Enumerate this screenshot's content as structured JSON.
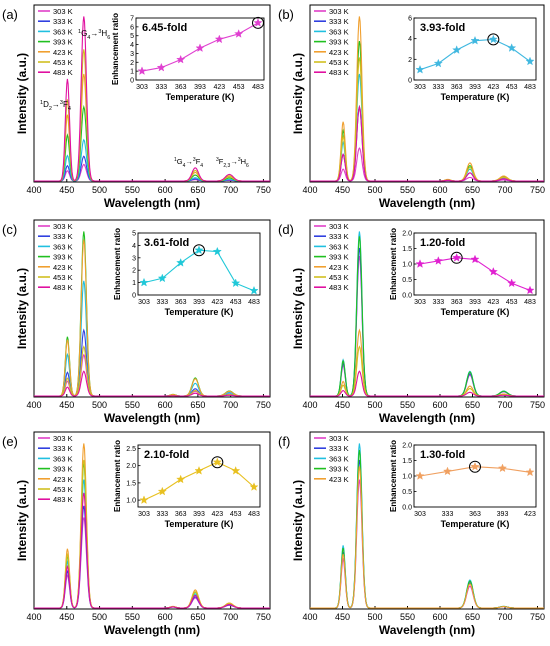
{
  "figure": {
    "title": "",
    "legend_colors": {
      "303 K": "#e040c8",
      "333 K": "#3040e0",
      "363 K": "#20c0e0",
      "393 K": "#20c020",
      "423 K": "#f0a030",
      "453 K": "#d0c020",
      "483 K": "#e010a0"
    }
  },
  "chart_data": [
    {
      "panel": "(a)",
      "type": "line",
      "xlabel": "Wavelength (nm)",
      "ylabel": "Intensity (a.u.)",
      "xticks": [
        "400",
        "450",
        "500",
        "550",
        "600",
        "650",
        "700",
        "750"
      ],
      "xlim": [
        400,
        760
      ],
      "legend": [
        "303 K",
        "333 K",
        "363 K",
        "393 K",
        "423 K",
        "453 K",
        "483 K"
      ],
      "annotations": {
        "a1_main": "1",
        "a1_sub": "D",
        "a1_sub2": "2",
        "a1_arrow": "→",
        "a1_sup": "3",
        "a1_end": "F",
        "a1_sub3": "4",
        "a2_sup": "1",
        "a2_main": "G",
        "a2_sub": "4",
        "a2_arrow": "→",
        "a2_sup2": "3",
        "a2_end": "H",
        "a2_sub2": "6",
        "a3": "1G4→3F4",
        "a4": "3F2,3→3H6"
      },
      "peak_scale": [
        0.1,
        0.15,
        0.25,
        0.45,
        0.65,
        0.8,
        1.0
      ],
      "inset": {
        "type": "line",
        "fold_label": "6.45-fold",
        "xlabel": "Temperature (K)",
        "ylabel": "Enhancement ratio",
        "xticks": [
          "303",
          "333",
          "363",
          "393",
          "423",
          "453",
          "483"
        ],
        "yticks": [
          "0",
          "1",
          "2",
          "3",
          "4",
          "5",
          "6",
          "7"
        ],
        "ylim": [
          0,
          7
        ],
        "values": [
          1.0,
          1.4,
          2.3,
          3.6,
          4.6,
          5.2,
          6.45
        ],
        "color": "#e040d0",
        "highlight_index": 6
      }
    },
    {
      "panel": "(b)",
      "type": "line",
      "xlabel": "Wavelength (nm)",
      "ylabel": "Intensity (a.u.)",
      "xticks": [
        "400",
        "450",
        "500",
        "550",
        "600",
        "650",
        "700",
        "750"
      ],
      "xlim": [
        400,
        760
      ],
      "legend": [
        "303 K",
        "333 K",
        "363 K",
        "393 K",
        "423 K",
        "453 K",
        "483 K"
      ],
      "peak_scale": [
        0.2,
        0.45,
        0.65,
        0.85,
        1.0,
        0.75,
        0.45
      ],
      "inset": {
        "type": "line",
        "fold_label": "3.93-fold",
        "xlabel": "Temperature (K)",
        "ylabel": "",
        "xticks": [
          "303",
          "333",
          "363",
          "393",
          "423",
          "453",
          "483"
        ],
        "yticks": [
          "0",
          "2",
          "4",
          "6"
        ],
        "ylim": [
          0,
          6
        ],
        "values": [
          1.0,
          1.6,
          2.9,
          3.8,
          3.93,
          3.1,
          1.8
        ],
        "color": "#40b8e0",
        "highlight_index": 4
      }
    },
    {
      "panel": "(c)",
      "type": "line",
      "xlabel": "Wavelength (nm)",
      "ylabel": "Intensity (a.u.)",
      "xticks": [
        "400",
        "450",
        "500",
        "550",
        "600",
        "650",
        "700",
        "750"
      ],
      "xlim": [
        400,
        760
      ],
      "legend": [
        "303 K",
        "333 K",
        "363 K",
        "393 K",
        "423 K",
        "453 K",
        "483 K"
      ],
      "peak_scale": [
        0.25,
        0.4,
        0.7,
        1.0,
        0.95,
        0.3,
        0.15
      ],
      "inset": {
        "type": "line",
        "fold_label": "3.61-fold",
        "xlabel": "Temperature (K)",
        "ylabel": "Enhancement ratio",
        "xticks": [
          "303",
          "333",
          "363",
          "393",
          "423",
          "453",
          "483"
        ],
        "yticks": [
          "0",
          "1",
          "2",
          "3",
          "4",
          "5"
        ],
        "ylim": [
          0,
          5
        ],
        "values": [
          1.0,
          1.35,
          2.6,
          3.61,
          3.5,
          0.95,
          0.35
        ],
        "color": "#20c8d8",
        "highlight_index": 3
      }
    },
    {
      "panel": "(d)",
      "type": "line",
      "xlabel": "Wavelength (nm)",
      "ylabel": "Intensity (a.u.)",
      "xticks": [
        "400",
        "450",
        "500",
        "550",
        "600",
        "650",
        "700",
        "750"
      ],
      "xlim": [
        400,
        760
      ],
      "legend": [
        "303 K",
        "333 K",
        "363 K",
        "393 K",
        "423 K",
        "453 K",
        "483 K"
      ],
      "peak_scale": [
        0.85,
        0.9,
        1.0,
        0.97,
        0.4,
        0.3,
        0.15
      ],
      "inset": {
        "type": "line",
        "fold_label": "1.20-fold",
        "xlabel": "Temperature (K)",
        "ylabel": "Enhancement ratio",
        "xticks": [
          "303",
          "333",
          "363",
          "393",
          "423",
          "453",
          "483"
        ],
        "yticks": [
          "0.0",
          "0.5",
          "1.0",
          "1.5",
          "2.0"
        ],
        "ylim": [
          0,
          2.0
        ],
        "values": [
          1.0,
          1.1,
          1.2,
          1.15,
          0.75,
          0.38,
          0.15
        ],
        "color": "#e020d0",
        "highlight_index": 2
      }
    },
    {
      "panel": "(e)",
      "type": "line",
      "xlabel": "Wavelength (nm)",
      "ylabel": "Intensity (a.u.)",
      "xticks": [
        "400",
        "450",
        "500",
        "550",
        "600",
        "650",
        "700",
        "750"
      ],
      "xlim": [
        400,
        760
      ],
      "legend": [
        "303 K",
        "333 K",
        "363 K",
        "393 K",
        "423 K",
        "453 K",
        "483 K"
      ],
      "peak_scale": [
        0.55,
        0.62,
        0.78,
        0.88,
        1.0,
        0.9,
        0.7
      ],
      "inset": {
        "type": "line",
        "fold_label": "2.10-fold",
        "xlabel": "Temperature (K)",
        "ylabel": "Enhancement ratio",
        "xticks": [
          "303",
          "333",
          "363",
          "393",
          "423",
          "453",
          "483"
        ],
        "yticks": [
          "1.0",
          "1.5",
          "2.0",
          "2.5"
        ],
        "ylim": [
          0.8,
          2.6
        ],
        "values": [
          1.0,
          1.25,
          1.6,
          1.85,
          2.1,
          1.85,
          1.38
        ],
        "color": "#e8c020",
        "highlight_index": 4
      }
    },
    {
      "panel": "(f)",
      "type": "line",
      "xlabel": "Wavelength (nm)",
      "ylabel": "Intensity (a.u.)",
      "xticks": [
        "400",
        "450",
        "500",
        "550",
        "600",
        "650",
        "700",
        "750"
      ],
      "xlim": [
        400,
        760
      ],
      "legend": [
        "303 K",
        "333 K",
        "363 K",
        "393 K",
        "423 K"
      ],
      "peak_scale": [
        0.78,
        0.9,
        1.0,
        0.96,
        0.86
      ],
      "inset": {
        "type": "line",
        "fold_label": "1.30-fold",
        "xlabel": "Temperature (K)",
        "ylabel": "Enhancement ratio",
        "xticks": [
          "303",
          "333",
          "363",
          "393",
          "423"
        ],
        "yticks": [
          "0.0",
          "0.5",
          "1.0",
          "1.5",
          "2.0"
        ],
        "ylim": [
          0,
          2.0
        ],
        "values": [
          1.0,
          1.15,
          1.3,
          1.25,
          1.12
        ],
        "color": "#f0a060",
        "highlight_index": 2
      }
    }
  ]
}
